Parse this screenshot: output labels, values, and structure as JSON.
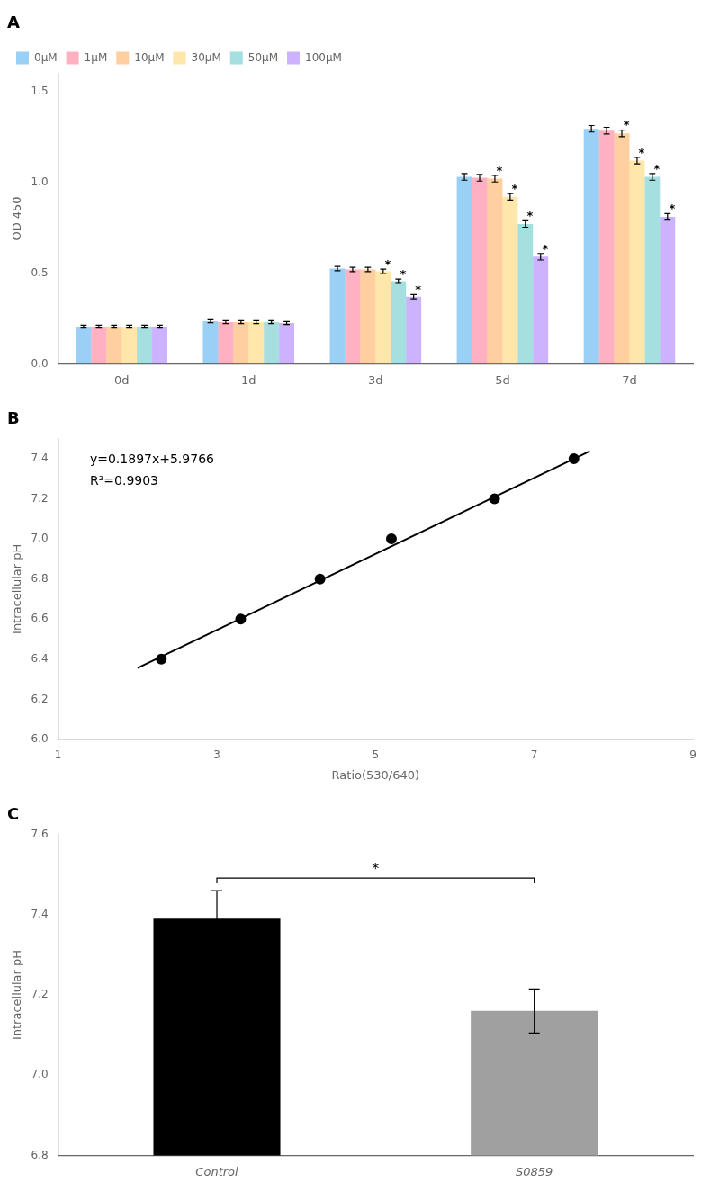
{
  "chart_data": [
    {
      "type": "bar",
      "title": "A",
      "categories": [
        "0d",
        "1d",
        "3d",
        "5d",
        "7d"
      ],
      "series": [
        {
          "name": "0μM",
          "values": [
            0.205,
            0.235,
            0.525,
            1.03,
            1.295
          ],
          "errors": [
            0.008,
            0.008,
            0.012,
            0.018,
            0.018
          ]
        },
        {
          "name": "1μM",
          "values": [
            0.205,
            0.23,
            0.52,
            1.025,
            1.285
          ],
          "errors": [
            0.008,
            0.008,
            0.012,
            0.018,
            0.018
          ]
        },
        {
          "name": "10μM",
          "values": [
            0.205,
            0.23,
            0.52,
            1.02,
            1.27
          ],
          "errors": [
            0.008,
            0.008,
            0.012,
            0.018,
            0.018
          ]
        },
        {
          "name": "30μM",
          "values": [
            0.205,
            0.23,
            0.51,
            0.92,
            1.12
          ],
          "errors": [
            0.008,
            0.008,
            0.012,
            0.018,
            0.018
          ]
        },
        {
          "name": "50μM",
          "values": [
            0.205,
            0.23,
            0.455,
            0.77,
            1.03
          ],
          "errors": [
            0.008,
            0.008,
            0.012,
            0.018,
            0.018
          ]
        },
        {
          "name": "100μM",
          "values": [
            0.205,
            0.225,
            0.37,
            0.59,
            0.81
          ],
          "errors": [
            0.008,
            0.008,
            0.012,
            0.018,
            0.018
          ]
        }
      ],
      "ylabel": "OD 450",
      "ylim": [
        0.0,
        1.6
      ],
      "yticks": [
        {
          "value": 0.0,
          "label": "0.0"
        },
        0.5,
        {
          "value": 1.0,
          "label": "1.0"
        },
        1.5
      ],
      "legend": "upper left",
      "grid": false,
      "annotations": [
        {
          "text": "*",
          "category": "3d",
          "series": "30μM"
        },
        {
          "text": "*",
          "category": "3d",
          "series": "50μM"
        },
        {
          "text": "*",
          "category": "3d",
          "series": "100μM"
        },
        {
          "text": "*",
          "category": "5d",
          "series": "10μM"
        },
        {
          "text": "*",
          "category": "5d",
          "series": "30μM"
        },
        {
          "text": "*",
          "category": "5d",
          "series": "50μM"
        },
        {
          "text": "*",
          "category": "5d",
          "series": "100μM"
        },
        {
          "text": "*",
          "category": "7d",
          "series": "10μM"
        },
        {
          "text": "*",
          "category": "7d",
          "series": "30μM"
        },
        {
          "text": "*",
          "category": "7d",
          "series": "50μM"
        },
        {
          "text": "*",
          "category": "7d",
          "series": "100μM"
        }
      ]
    },
    {
      "type": "scatter",
      "title": "B",
      "series": [
        {
          "type": "scatter",
          "x": [
            2.3,
            3.3,
            4.3,
            5.2,
            6.5,
            7.5
          ],
          "values": [
            6.4,
            6.6,
            6.8,
            7.0,
            7.2,
            7.4
          ],
          "color": "#000000"
        },
        {
          "type": "line",
          "x": [
            2.0,
            7.7
          ],
          "values": [
            6.356,
            7.43729
          ],
          "color": "#000000"
        }
      ],
      "xlabel": "Ratio(530/640)",
      "ylabel": "Intracellular pH",
      "xlim": [
        1,
        9
      ],
      "ylim": [
        6.0,
        7.5
      ],
      "xticks": [
        1,
        3,
        5,
        7,
        9
      ],
      "yticks": [
        {
          "value": 6.0,
          "label": "6.0"
        },
        6.2,
        6.4,
        6.6,
        6.8,
        {
          "value": 7.0,
          "label": "7.0"
        },
        7.2,
        7.4
      ],
      "grid": false,
      "annotations": [
        {
          "text": "y=0.1897x+5.9766"
        },
        {
          "text": "R²=0.9903"
        }
      ]
    },
    {
      "type": "bar",
      "title": "C",
      "categories": [
        "Control",
        "S0859"
      ],
      "values": [
        7.39,
        7.16
      ],
      "errors": [
        0.07,
        0.055
      ],
      "colors": [
        "#000000",
        "#a0a0a0"
      ],
      "ylabel": "Intracellular pH",
      "ylim": [
        6.8,
        7.6
      ],
      "yticks": [
        6.8,
        {
          "value": 7.0,
          "label": "7.0"
        },
        7.2,
        7.4,
        7.6
      ],
      "grid": false,
      "annotations": [
        {
          "text": "*",
          "from": "Control",
          "to": "S0859"
        }
      ]
    }
  ]
}
